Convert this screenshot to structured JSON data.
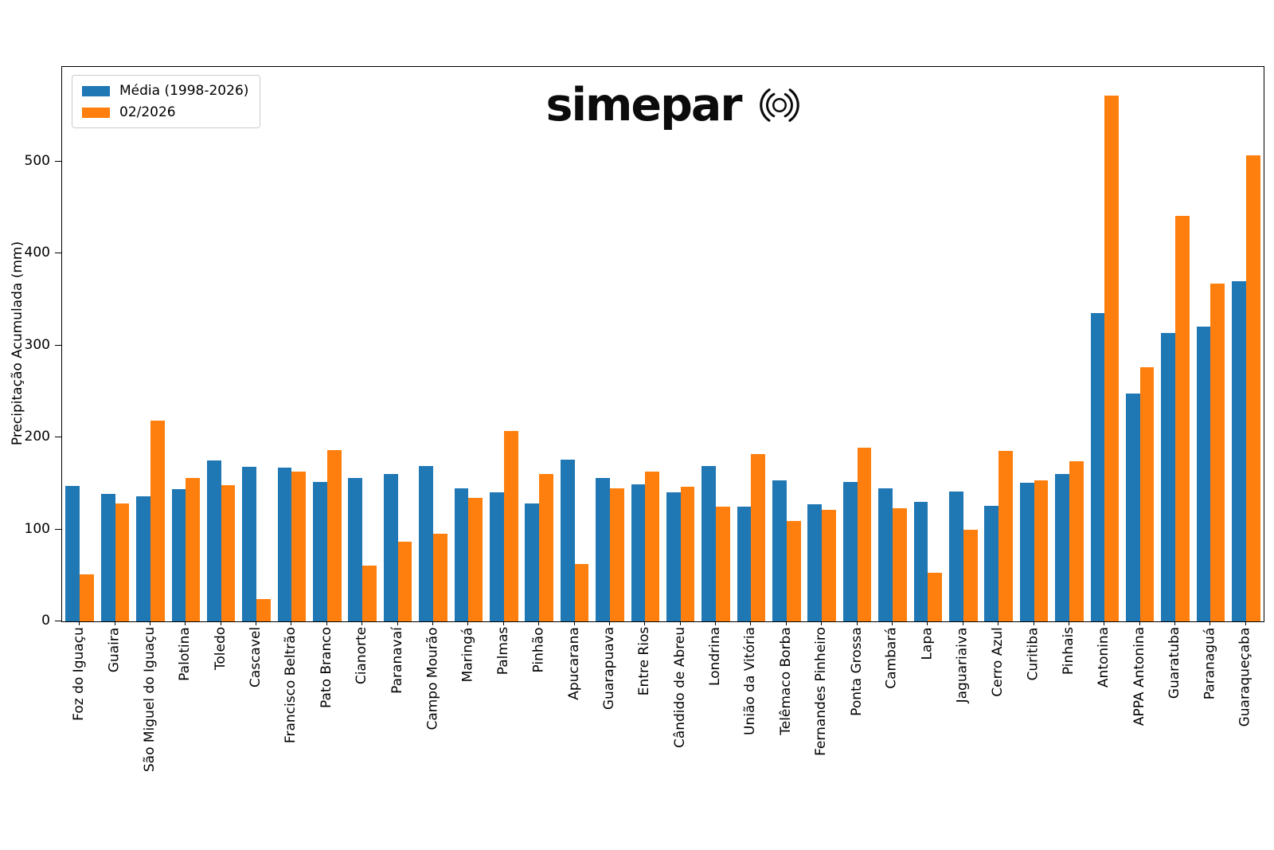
{
  "logo": {
    "text": "simepar"
  },
  "chart_data": {
    "type": "bar",
    "title": "",
    "xlabel": "",
    "ylabel": "Precipitação Acumulada (mm)",
    "ylim": [
      0,
      603
    ],
    "yticks": [
      0,
      100,
      200,
      300,
      400,
      500
    ],
    "grid": false,
    "legend_position": "upper left",
    "categories": [
      "Foz do Iguaçu",
      "Guaira",
      "São Miguel do Iguaçu",
      "Palotina",
      "Toledo",
      "Cascavel",
      "Francisco Beltrão",
      "Pato Branco",
      "Cianorte",
      "Paranavaí",
      "Campo Mourão",
      "Maringá",
      "Palmas",
      "Pinhão",
      "Apucarana",
      "Guarapuava",
      "Entre Rios",
      "Cândido de Abreu",
      "Londrina",
      "União da Vitória",
      "Telêmaco Borba",
      "Fernandes Pinheiro",
      "Ponta Grossa",
      "Cambará",
      "Lapa",
      "Jaguariaiva",
      "Cerro Azul",
      "Curitiba",
      "Pinhais",
      "Antonina",
      "APPA Antonina",
      "Guaratuba",
      "Paranaguá",
      "Guaraqueçaba"
    ],
    "series": [
      {
        "name": "Média (1998-2026)",
        "color": "#1f77b4",
        "values": [
          147,
          139,
          136,
          144,
          175,
          168,
          167,
          152,
          156,
          160,
          169,
          145,
          140,
          128,
          176,
          156,
          149,
          140,
          169,
          125,
          153,
          127,
          152,
          145,
          130,
          141,
          126,
          151,
          160,
          335,
          248,
          314,
          321,
          370
        ]
      },
      {
        "name": "02/2026",
        "color": "#ff7f0e",
        "values": [
          51,
          128,
          218,
          156,
          148,
          24,
          163,
          186,
          61,
          87,
          95,
          134,
          207,
          160,
          62,
          145,
          163,
          146,
          125,
          182,
          109,
          121,
          189,
          123,
          53,
          100,
          185,
          153,
          174,
          572,
          276,
          441,
          367,
          507
        ]
      }
    ]
  }
}
